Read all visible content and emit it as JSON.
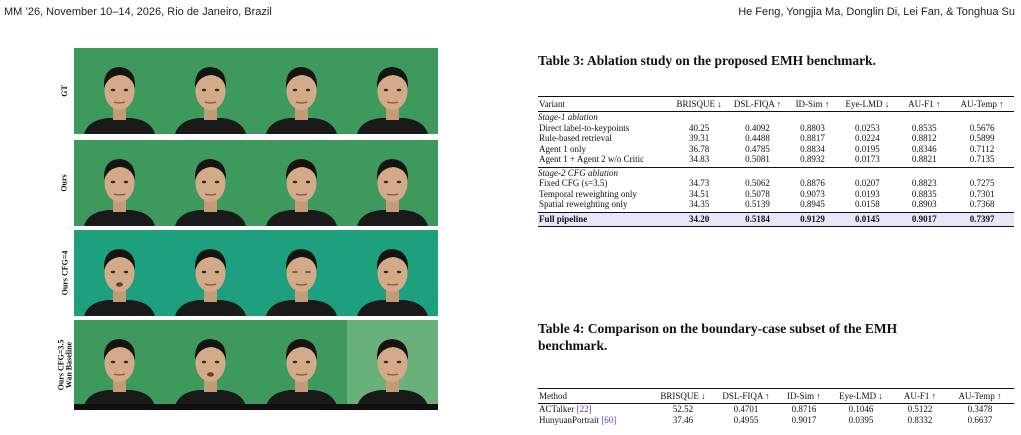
{
  "header": {
    "left": "MM ’26, November 10–14, 2026, Rio de Janeiro, Brazil",
    "right": "He Feng, Yongjia Ma, Donglin Di, Lei Fan, & Tonghua Su"
  },
  "figure": {
    "row_labels": [
      "GT",
      "Ours",
      "Ours CFG=4",
      "Ours CFG=3.5\nWan Baseline"
    ],
    "colors": {
      "green": "#3d9a5c",
      "teal": "#1ea07e",
      "light_green": "#6ab07a",
      "dark_bar": "#101010"
    }
  },
  "table3": {
    "caption": "Table 3: Ablation study on the proposed EMH benchmark.",
    "headers": [
      "Variant",
      "BRISQUE ↓",
      "DSL-FIQA ↑",
      "ID-Sim ↑",
      "Eye-LMD ↓",
      "AU-F1 ↑",
      "AU-Temp ↑"
    ],
    "groups": [
      {
        "title": "Stage-1 ablation",
        "rows": [
          [
            "Direct label-to-keypoints",
            "40.25",
            "0.4092",
            "0.8803",
            "0.0253",
            "0.8535",
            "0.5676"
          ],
          [
            "Rule-based retrieval",
            "39.31",
            "0.4488",
            "0.8817",
            "0.0224",
            "0.8812",
            "0.5899"
          ],
          [
            "Agent 1 only",
            "36.78",
            "0.4785",
            "0.8834",
            "0.0195",
            "0.8346",
            "0.7112"
          ],
          [
            "Agent 1 + Agent 2 w/o Critic",
            "34.83",
            "0.5081",
            "0.8932",
            "0.0173",
            "0.8821",
            "0.7135"
          ]
        ]
      },
      {
        "title": "Stage-2 CFG ablation",
        "rows": [
          [
            "Fixed CFG (s=3.5)",
            "34.73",
            "0.5062",
            "0.8876",
            "0.0207",
            "0.8823",
            "0.7275"
          ],
          [
            "Temporal reweighting only",
            "34.51",
            "0.5078",
            "0.9073",
            "0.0193",
            "0.8835",
            "0.7301"
          ],
          [
            "Spatial reweighting only",
            "34.35",
            "0.5139",
            "0.8945",
            "0.0158",
            "0.8903",
            "0.7368"
          ]
        ]
      }
    ],
    "full": [
      "Full pipeline",
      "34.20",
      "0.5184",
      "0.9129",
      "0.0145",
      "0.9017",
      "0.7397"
    ]
  },
  "table4": {
    "caption_line1": "Table 4: Comparison on the boundary-case subset of the EMH",
    "caption_line2": "benchmark.",
    "headers": [
      "Method",
      "BRISQUE ↓",
      "DSL-FIQA ↑",
      "ID-Sim ↑",
      "Eye-LMD ↓",
      "AU-F1 ↑",
      "AU-Temp ↑"
    ],
    "rows": [
      {
        "name": "ACTalker",
        "ref": "[22]",
        "vals": [
          "52.52",
          "0.4701",
          "0.8716",
          "0.1046",
          "0.5122",
          "0.3478"
        ]
      },
      {
        "name": "HunyuanPortrait",
        "ref": "[60]",
        "vals": [
          "37.46",
          "0.4955",
          "0.9017",
          "0.0395",
          "0.8332",
          "0.6637"
        ]
      }
    ]
  }
}
